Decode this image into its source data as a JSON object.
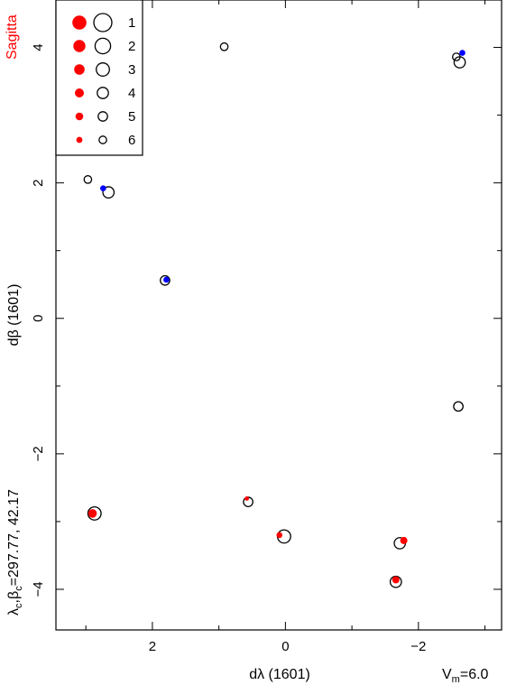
{
  "constellation": "Sagitta",
  "left_caption": "λc,βc=297.77, 42.17",
  "vm_label": "Vm=6.0",
  "colors": {
    "accent_red": "#ff0000",
    "highlight_blue": "#0000ff",
    "outline": "#000000"
  },
  "legend": {
    "entries": [
      "1",
      "2",
      "3",
      "4",
      "5",
      "6"
    ]
  },
  "chart_data": {
    "type": "scatter",
    "xlabel": "dλ (1601)",
    "ylabel": "dβ (1601)",
    "x_reversed": true,
    "xlim": [
      3.45,
      -3.25
    ],
    "ylim": [
      -4.6,
      4.7
    ],
    "x_ticks": [
      2,
      0,
      -2
    ],
    "x_tick_labels": [
      "2",
      "0",
      "−2"
    ],
    "y_ticks": [
      4,
      2,
      0,
      -2,
      -4
    ],
    "y_tick_labels": [
      "4",
      "2",
      "0",
      "−2",
      "−4"
    ],
    "grid": false,
    "legend_position": "top-left",
    "open_circles": [
      {
        "x": 0.92,
        "y": 4.01,
        "mag": 6
      },
      {
        "x": -2.57,
        "y": 3.86,
        "mag": 6
      },
      {
        "x": -2.62,
        "y": 3.78,
        "mag": 4
      },
      {
        "x": 2.97,
        "y": 2.05,
        "mag": 6
      },
      {
        "x": 2.66,
        "y": 1.86,
        "mag": 4
      },
      {
        "x": 1.81,
        "y": 0.56,
        "mag": 5
      },
      {
        "x": -2.6,
        "y": -1.3,
        "mag": 5
      },
      {
        "x": 2.87,
        "y": -2.88,
        "mag": 3
      },
      {
        "x": 0.56,
        "y": -2.71,
        "mag": 5
      },
      {
        "x": 0.02,
        "y": -3.22,
        "mag": 3
      },
      {
        "x": -1.72,
        "y": -3.32,
        "mag": 4
      },
      {
        "x": -1.66,
        "y": -3.89,
        "mag": 4
      }
    ],
    "red_dots": [
      {
        "x": 2.9,
        "y": -2.88,
        "mag": 3
      },
      {
        "x": 0.58,
        "y": -2.66,
        "mag": 6
      },
      {
        "x": 0.09,
        "y": -3.2,
        "mag": 5
      },
      {
        "x": -1.78,
        "y": -3.28,
        "mag": 4
      },
      {
        "x": -1.66,
        "y": -3.86,
        "mag": 4
      }
    ],
    "blue_dots": [
      {
        "x": -2.66,
        "y": 3.92,
        "mag": 5
      },
      {
        "x": 2.74,
        "y": 1.92,
        "mag": 5
      },
      {
        "x": 1.79,
        "y": 0.57,
        "mag": 5
      }
    ]
  }
}
